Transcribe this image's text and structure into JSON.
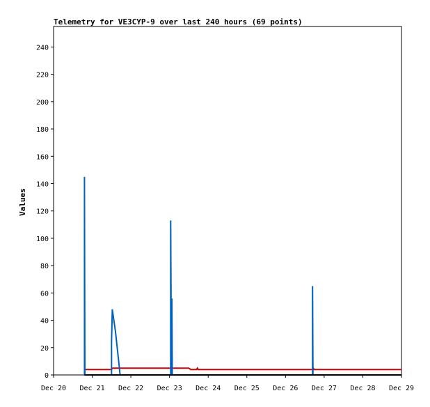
{
  "chart_data": {
    "type": "line",
    "title": "Telemetry for VE3CYP-9 over last 240 hours (69 points)",
    "xlabel": "",
    "ylabel": "Values",
    "xlim": [
      "Dec 20",
      "Dec 29"
    ],
    "ylim": [
      0,
      255
    ],
    "x_ticks": [
      "Dec 20",
      "Dec 21",
      "Dec 22",
      "Dec 23",
      "Dec 24",
      "Dec 25",
      "Dec 26",
      "Dec 27",
      "Dec 28",
      "Dec 29"
    ],
    "y_ticks": [
      0,
      20,
      40,
      60,
      80,
      100,
      120,
      140,
      160,
      180,
      200,
      220,
      240
    ],
    "grid": false,
    "legend": "none",
    "x_unit": "days since Dec 20 00:00",
    "series": [
      {
        "color": "#d00000",
        "points": [
          [
            0.8,
            4
          ],
          [
            1.5,
            4
          ],
          [
            1.52,
            5
          ],
          [
            2.0,
            5
          ],
          [
            3.0,
            5
          ],
          [
            3.5,
            5
          ],
          [
            3.55,
            4
          ],
          [
            3.7,
            4
          ],
          [
            3.72,
            5
          ],
          [
            3.74,
            4
          ],
          [
            6.7,
            4
          ],
          [
            6.72,
            5
          ],
          [
            6.74,
            4
          ],
          [
            9.0,
            4
          ]
        ]
      },
      {
        "color": "#0060c0",
        "points": [
          [
            0.8,
            0
          ],
          [
            0.8,
            145
          ],
          [
            0.81,
            0
          ],
          [
            1.5,
            0
          ],
          [
            1.5,
            24
          ],
          [
            1.52,
            48
          ],
          [
            1.6,
            32
          ],
          [
            1.7,
            6
          ],
          [
            1.72,
            0
          ],
          [
            3.03,
            0
          ],
          [
            3.03,
            113
          ],
          [
            3.05,
            0
          ],
          [
            3.06,
            56
          ],
          [
            3.07,
            0
          ],
          [
            6.7,
            0
          ],
          [
            6.7,
            65
          ],
          [
            6.71,
            0
          ],
          [
            9.0,
            0
          ]
        ]
      },
      {
        "color": "#000000",
        "points": [
          [
            0.8,
            0
          ],
          [
            9.0,
            0
          ]
        ]
      }
    ]
  }
}
